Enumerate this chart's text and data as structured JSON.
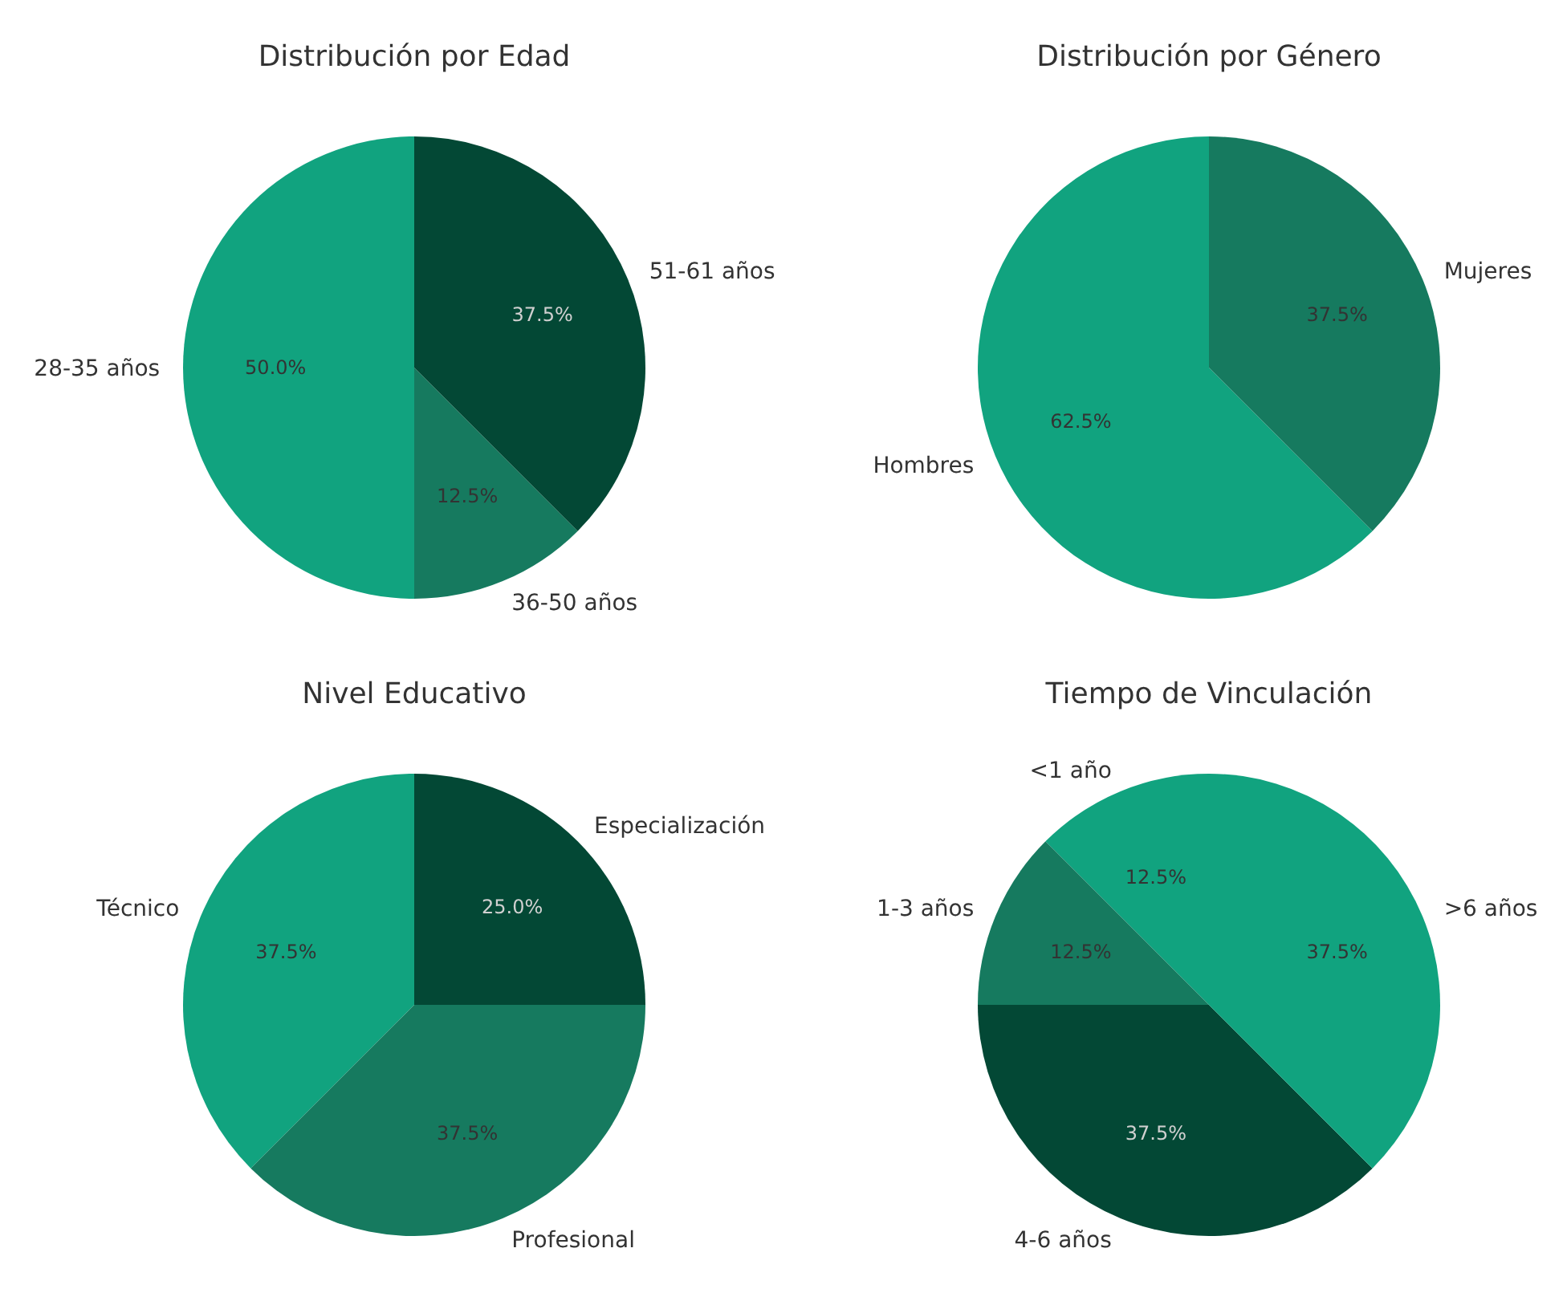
{
  "chart_data": [
    {
      "type": "pie",
      "title": "Distribución por Edad",
      "categories": [
        "28-35 años",
        "36-50 años",
        "51-61 años"
      ],
      "values": [
        50,
        12.5,
        37.5
      ],
      "colors": [
        "#11a37f",
        "#167a5f",
        "#034835"
      ],
      "value_labels": [
        "50.0%",
        "12.5%",
        "37.5%"
      ]
    },
    {
      "type": "pie",
      "title": "Distribución por Género",
      "categories": [
        "Hombres",
        "Mujeres"
      ],
      "values": [
        62.5,
        37.5
      ],
      "colors": [
        "#11a37f",
        "#167a5f"
      ],
      "value_labels": [
        "62.5%",
        "37.5%"
      ]
    },
    {
      "type": "pie",
      "title": "Nivel Educativo",
      "categories": [
        "Técnico",
        "Profesional",
        "Especialización"
      ],
      "values": [
        37.5,
        37.5,
        25
      ],
      "colors": [
        "#11a37f",
        "#167a5f",
        "#034835"
      ],
      "value_labels": [
        "37.5%",
        "37.5%",
        "25.0%"
      ]
    },
    {
      "type": "pie",
      "title": "Tiempo de Vinculación",
      "categories": [
        "<1 año",
        "1-3 años",
        "4-6 años",
        ">6 años"
      ],
      "values": [
        12.5,
        12.5,
        37.5,
        37.5
      ],
      "colors": [
        "#11a37f",
        "#167a5f",
        "#034835",
        "#11a37f"
      ],
      "value_labels": [
        "12.5%",
        "12.5%",
        "37.5%",
        "37.5%"
      ]
    }
  ]
}
